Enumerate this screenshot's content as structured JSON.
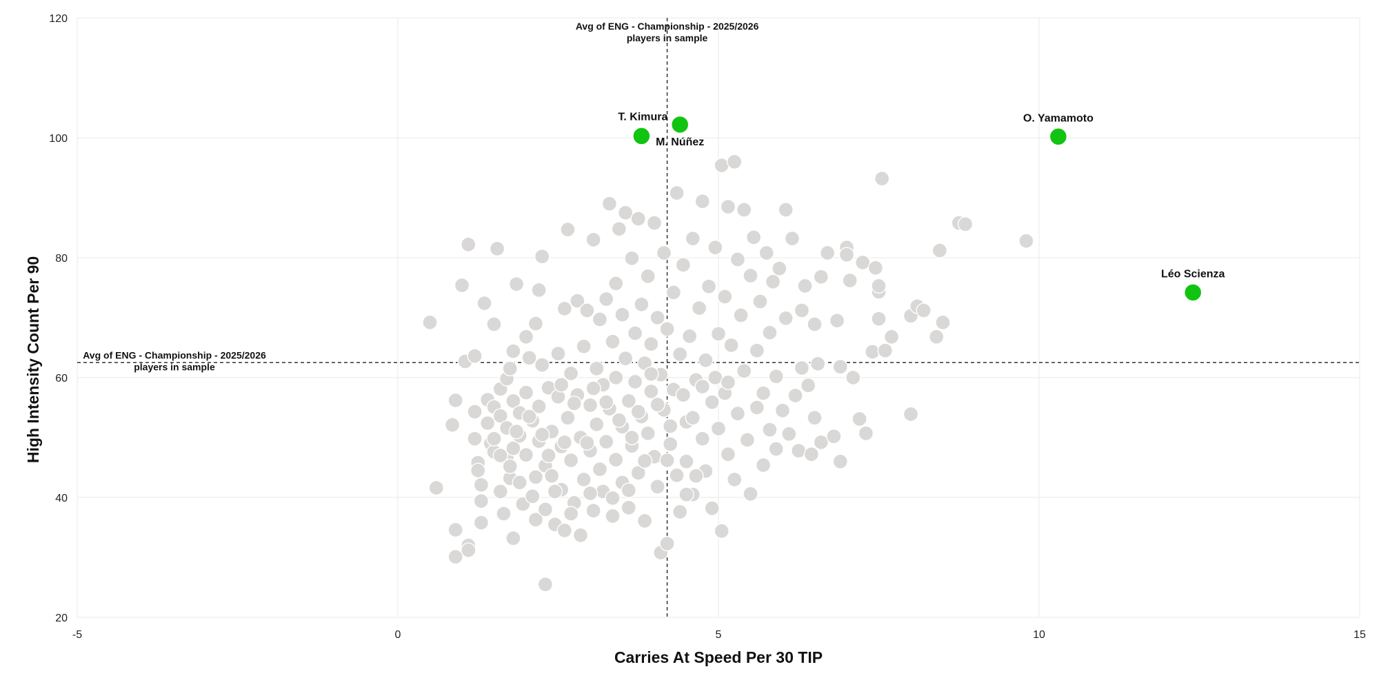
{
  "chart_data": {
    "type": "scatter",
    "title": "",
    "xlabel": "Carries At Speed Per 30 TIP",
    "ylabel": "High Intensity Count Per 90",
    "xlim": [
      -5,
      15
    ],
    "ylim": [
      20,
      120
    ],
    "x_ticks": [
      "-5",
      "0",
      "5",
      "10",
      "15"
    ],
    "y_ticks": [
      "20",
      "40",
      "60",
      "80",
      "100",
      "120"
    ],
    "grid": true,
    "colors": {
      "background_points": "#d9d8d6",
      "background_stroke": "#ffffff",
      "highlight": "#11c411",
      "grid": "#e8e8e8",
      "avg_line": "#333333"
    },
    "averages": {
      "x": 4.2,
      "y": 62.5,
      "x_label_line1": "Avg of ENG - Championship - 2025/2026",
      "x_label_line2": "players in sample",
      "y_label_line1": "Avg of ENG - Championship - 2025/2026",
      "y_label_line2": "players in sample"
    },
    "highlighted": [
      {
        "name": "T. Kimura",
        "x": 3.8,
        "y": 100.3,
        "label_pos": "above-left"
      },
      {
        "name": "M. Núñez",
        "x": 4.4,
        "y": 102.2,
        "label_pos": "below"
      },
      {
        "name": "O. Yamamoto",
        "x": 10.3,
        "y": 100.2,
        "label_pos": "above"
      },
      {
        "name": "Léo Scienza",
        "x": 12.4,
        "y": 74.2,
        "label_pos": "above"
      }
    ],
    "points": [
      [
        0.5,
        69.2
      ],
      [
        0.6,
        41.6
      ],
      [
        0.85,
        52.1
      ],
      [
        0.9,
        56.2
      ],
      [
        0.9,
        34.6
      ],
      [
        0.9,
        30.1
      ],
      [
        1.0,
        75.4
      ],
      [
        1.05,
        62.7
      ],
      [
        1.1,
        32.0
      ],
      [
        1.1,
        31.2
      ],
      [
        1.1,
        82.2
      ],
      [
        1.2,
        63.6
      ],
      [
        1.2,
        54.3
      ],
      [
        1.2,
        49.8
      ],
      [
        1.25,
        45.8
      ],
      [
        1.25,
        44.5
      ],
      [
        1.3,
        42.1
      ],
      [
        1.3,
        39.4
      ],
      [
        1.3,
        35.8
      ],
      [
        1.35,
        72.4
      ],
      [
        1.4,
        56.3
      ],
      [
        1.4,
        52.4
      ],
      [
        1.45,
        49.0
      ],
      [
        1.5,
        68.9
      ],
      [
        1.5,
        55.1
      ],
      [
        1.5,
        47.6
      ],
      [
        1.55,
        81.5
      ],
      [
        1.6,
        58.1
      ],
      [
        1.6,
        53.6
      ],
      [
        1.6,
        41.0
      ],
      [
        1.65,
        37.3
      ],
      [
        1.7,
        59.8
      ],
      [
        1.7,
        51.6
      ],
      [
        1.7,
        46.5
      ],
      [
        1.75,
        61.5
      ],
      [
        1.75,
        43.2
      ],
      [
        1.8,
        64.4
      ],
      [
        1.8,
        56.1
      ],
      [
        1.8,
        48.2
      ],
      [
        1.8,
        33.2
      ],
      [
        1.85,
        75.6
      ],
      [
        1.9,
        54.1
      ],
      [
        1.9,
        50.3
      ],
      [
        1.9,
        42.5
      ],
      [
        1.95,
        38.9
      ],
      [
        2.0,
        66.8
      ],
      [
        2.0,
        57.5
      ],
      [
        2.0,
        47.1
      ],
      [
        2.05,
        63.3
      ],
      [
        2.1,
        52.8
      ],
      [
        2.1,
        40.2
      ],
      [
        2.15,
        69.0
      ],
      [
        2.15,
        36.3
      ],
      [
        2.2,
        74.6
      ],
      [
        2.2,
        55.2
      ],
      [
        2.2,
        49.4
      ],
      [
        2.25,
        80.2
      ],
      [
        2.25,
        62.1
      ],
      [
        2.3,
        45.3
      ],
      [
        2.3,
        38.0
      ],
      [
        2.35,
        58.3
      ],
      [
        2.4,
        51.0
      ],
      [
        2.4,
        43.6
      ],
      [
        2.45,
        35.5
      ],
      [
        2.5,
        64.0
      ],
      [
        2.5,
        56.8
      ],
      [
        2.55,
        48.5
      ],
      [
        2.55,
        41.3
      ],
      [
        2.6,
        71.5
      ],
      [
        2.6,
        34.5
      ],
      [
        2.65,
        84.7
      ],
      [
        2.65,
        53.3
      ],
      [
        2.7,
        60.7
      ],
      [
        2.7,
        46.2
      ],
      [
        2.75,
        39.1
      ],
      [
        2.8,
        72.8
      ],
      [
        2.8,
        57.1
      ],
      [
        2.85,
        50.0
      ],
      [
        2.85,
        33.7
      ],
      [
        2.9,
        65.2
      ],
      [
        2.9,
        43.0
      ],
      [
        2.95,
        71.2
      ],
      [
        3.0,
        55.4
      ],
      [
        3.0,
        47.8
      ],
      [
        3.05,
        83.0
      ],
      [
        3.05,
        37.8
      ],
      [
        3.1,
        61.5
      ],
      [
        3.1,
        52.2
      ],
      [
        3.15,
        69.7
      ],
      [
        3.15,
        44.7
      ],
      [
        3.2,
        58.8
      ],
      [
        3.2,
        41.0
      ],
      [
        3.25,
        73.1
      ],
      [
        3.25,
        49.3
      ],
      [
        3.3,
        89.0
      ],
      [
        3.3,
        54.8
      ],
      [
        3.35,
        66.0
      ],
      [
        3.35,
        36.9
      ],
      [
        3.4,
        75.7
      ],
      [
        3.4,
        60.0
      ],
      [
        3.4,
        46.3
      ],
      [
        3.45,
        84.8
      ],
      [
        3.5,
        70.5
      ],
      [
        3.5,
        51.8
      ],
      [
        3.5,
        42.5
      ],
      [
        3.55,
        87.5
      ],
      [
        3.55,
        63.2
      ],
      [
        3.6,
        56.1
      ],
      [
        3.6,
        38.3
      ],
      [
        3.65,
        79.9
      ],
      [
        3.65,
        48.6
      ],
      [
        3.7,
        67.4
      ],
      [
        3.7,
        59.3
      ],
      [
        3.75,
        86.5
      ],
      [
        3.75,
        44.1
      ],
      [
        3.8,
        72.2
      ],
      [
        3.8,
        53.5
      ],
      [
        3.85,
        62.4
      ],
      [
        3.85,
        36.1
      ],
      [
        3.9,
        76.9
      ],
      [
        3.9,
        50.7
      ],
      [
        3.95,
        65.6
      ],
      [
        3.95,
        57.7
      ],
      [
        4.0,
        85.8
      ],
      [
        4.0,
        46.8
      ],
      [
        4.05,
        70.0
      ],
      [
        4.05,
        41.8
      ],
      [
        4.1,
        60.5
      ],
      [
        4.1,
        30.8
      ],
      [
        4.15,
        80.8
      ],
      [
        4.15,
        54.6
      ],
      [
        4.2,
        32.3
      ],
      [
        4.2,
        68.1
      ],
      [
        4.25,
        48.9
      ],
      [
        4.3,
        74.2
      ],
      [
        4.3,
        58.0
      ],
      [
        4.35,
        90.8
      ],
      [
        4.35,
        43.7
      ],
      [
        4.4,
        63.9
      ],
      [
        4.4,
        37.6
      ],
      [
        4.45,
        78.8
      ],
      [
        4.5,
        52.6
      ],
      [
        4.5,
        46.0
      ],
      [
        4.55,
        66.9
      ],
      [
        4.6,
        83.2
      ],
      [
        4.6,
        40.5
      ],
      [
        4.65,
        59.6
      ],
      [
        4.7,
        71.6
      ],
      [
        4.75,
        89.4
      ],
      [
        4.75,
        49.8
      ],
      [
        4.8,
        62.9
      ],
      [
        4.8,
        44.4
      ],
      [
        4.85,
        75.2
      ],
      [
        4.9,
        55.9
      ],
      [
        4.9,
        38.2
      ],
      [
        4.95,
        81.7
      ],
      [
        5.0,
        67.3
      ],
      [
        5.0,
        51.5
      ],
      [
        5.05,
        95.4
      ],
      [
        5.05,
        34.4
      ],
      [
        5.1,
        73.5
      ],
      [
        5.1,
        57.4
      ],
      [
        5.15,
        88.5
      ],
      [
        5.15,
        47.2
      ],
      [
        5.2,
        65.4
      ],
      [
        5.25,
        96.0
      ],
      [
        5.25,
        43.0
      ],
      [
        5.3,
        79.7
      ],
      [
        5.3,
        54.0
      ],
      [
        5.35,
        70.4
      ],
      [
        5.4,
        88.0
      ],
      [
        5.4,
        61.1
      ],
      [
        5.45,
        49.6
      ],
      [
        5.5,
        77.0
      ],
      [
        5.5,
        40.6
      ],
      [
        5.55,
        83.4
      ],
      [
        5.6,
        64.5
      ],
      [
        5.6,
        55.0
      ],
      [
        5.65,
        72.7
      ],
      [
        5.7,
        57.4
      ],
      [
        5.7,
        45.4
      ],
      [
        5.75,
        80.8
      ],
      [
        5.8,
        67.5
      ],
      [
        5.8,
        51.3
      ],
      [
        5.85,
        76.0
      ],
      [
        5.9,
        60.2
      ],
      [
        5.9,
        48.1
      ],
      [
        5.95,
        78.2
      ],
      [
        6.0,
        54.5
      ],
      [
        6.05,
        88.0
      ],
      [
        6.05,
        69.9
      ],
      [
        6.1,
        50.6
      ],
      [
        6.15,
        83.2
      ],
      [
        6.2,
        57.0
      ],
      [
        6.25,
        47.8
      ],
      [
        6.3,
        71.2
      ],
      [
        6.3,
        61.6
      ],
      [
        6.35,
        75.3
      ],
      [
        6.4,
        58.7
      ],
      [
        6.45,
        47.2
      ],
      [
        6.5,
        68.9
      ],
      [
        6.5,
        53.3
      ],
      [
        6.55,
        62.3
      ],
      [
        6.6,
        76.8
      ],
      [
        6.6,
        49.2
      ],
      [
        6.7,
        80.8
      ],
      [
        6.8,
        50.2
      ],
      [
        6.85,
        69.5
      ],
      [
        6.9,
        61.8
      ],
      [
        6.9,
        46.0
      ],
      [
        7.0,
        81.7
      ],
      [
        7.0,
        80.5
      ],
      [
        7.05,
        76.2
      ],
      [
        7.1,
        60.0
      ],
      [
        7.2,
        53.1
      ],
      [
        7.25,
        79.2
      ],
      [
        7.3,
        50.7
      ],
      [
        7.4,
        64.3
      ],
      [
        7.45,
        78.3
      ],
      [
        7.5,
        74.3
      ],
      [
        7.5,
        69.8
      ],
      [
        7.5,
        75.3
      ],
      [
        7.55,
        93.2
      ],
      [
        7.6,
        64.5
      ],
      [
        7.7,
        66.8
      ],
      [
        8.0,
        53.9
      ],
      [
        8.0,
        70.3
      ],
      [
        8.1,
        71.9
      ],
      [
        8.2,
        71.2
      ],
      [
        8.4,
        66.8
      ],
      [
        8.45,
        81.2
      ],
      [
        8.5,
        69.2
      ],
      [
        8.75,
        85.8
      ],
      [
        8.85,
        85.6
      ],
      [
        9.8,
        82.8
      ],
      [
        2.3,
        25.5
      ],
      [
        1.5,
        49.8
      ],
      [
        1.75,
        45.2
      ],
      [
        2.05,
        53.5
      ],
      [
        2.35,
        47.0
      ],
      [
        2.55,
        58.8
      ],
      [
        2.75,
        55.7
      ],
      [
        2.95,
        49.1
      ],
      [
        3.05,
        58.2
      ],
      [
        3.25,
        55.9
      ],
      [
        3.45,
        52.9
      ],
      [
        3.65,
        50.0
      ],
      [
        3.75,
        54.3
      ],
      [
        3.95,
        60.6
      ],
      [
        4.05,
        55.5
      ],
      [
        4.25,
        51.9
      ],
      [
        4.45,
        57.1
      ],
      [
        4.6,
        53.3
      ],
      [
        4.75,
        58.5
      ],
      [
        4.95,
        60.0
      ],
      [
        5.15,
        59.2
      ],
      [
        2.15,
        43.4
      ],
      [
        2.45,
        41.0
      ],
      [
        2.7,
        37.3
      ],
      [
        3.0,
        40.7
      ],
      [
        3.35,
        39.9
      ],
      [
        3.6,
        41.2
      ],
      [
        3.85,
        46.1
      ],
      [
        4.2,
        46.2
      ],
      [
        4.5,
        40.5
      ],
      [
        4.65,
        43.6
      ],
      [
        1.6,
        47.0
      ],
      [
        1.85,
        51.0
      ],
      [
        2.25,
        50.5
      ],
      [
        2.6,
        49.2
      ]
    ]
  }
}
